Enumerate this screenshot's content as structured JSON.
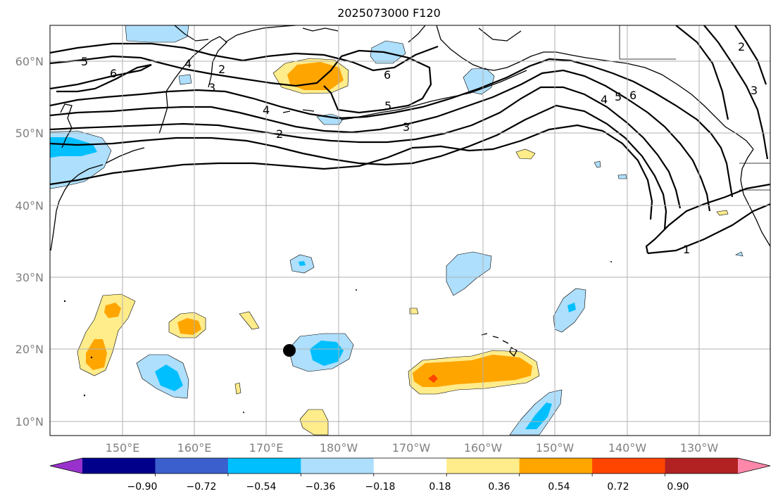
{
  "title": "2025073000 F120",
  "map": {
    "lon_ticks": [
      "150°E",
      "160°E",
      "170°E",
      "180°W",
      "170°W",
      "160°W",
      "150°W",
      "140°W",
      "130°W"
    ],
    "lat_ticks": [
      "60°N",
      "50°N",
      "40°N",
      "30°N",
      "20°N",
      "10°N"
    ],
    "contour_labels": [
      "5",
      "6",
      "4",
      "3",
      "2",
      "4",
      "6",
      "5",
      "4",
      "3",
      "2",
      "1",
      "5",
      "6",
      "3",
      "2"
    ]
  },
  "colorbar": {
    "labels": [
      "−0.90",
      "−0.72",
      "−0.54",
      "−0.36",
      "−0.18",
      "0.18",
      "0.36",
      "0.54",
      "0.72",
      "0.90"
    ],
    "colors": [
      "#9932cc",
      "#00008b",
      "#3b5fcd",
      "#00bfff",
      "#aedffc",
      "#ffffff",
      "#ffec8b",
      "#ffa500",
      "#ff4500",
      "#b22222",
      "#ff88aa"
    ]
  },
  "colors": {
    "blue_light": "#aedffc",
    "blue_mid": "#00bfff",
    "yellow": "#ffec8b",
    "orange": "#ffa500",
    "red": "#ff4500"
  }
}
